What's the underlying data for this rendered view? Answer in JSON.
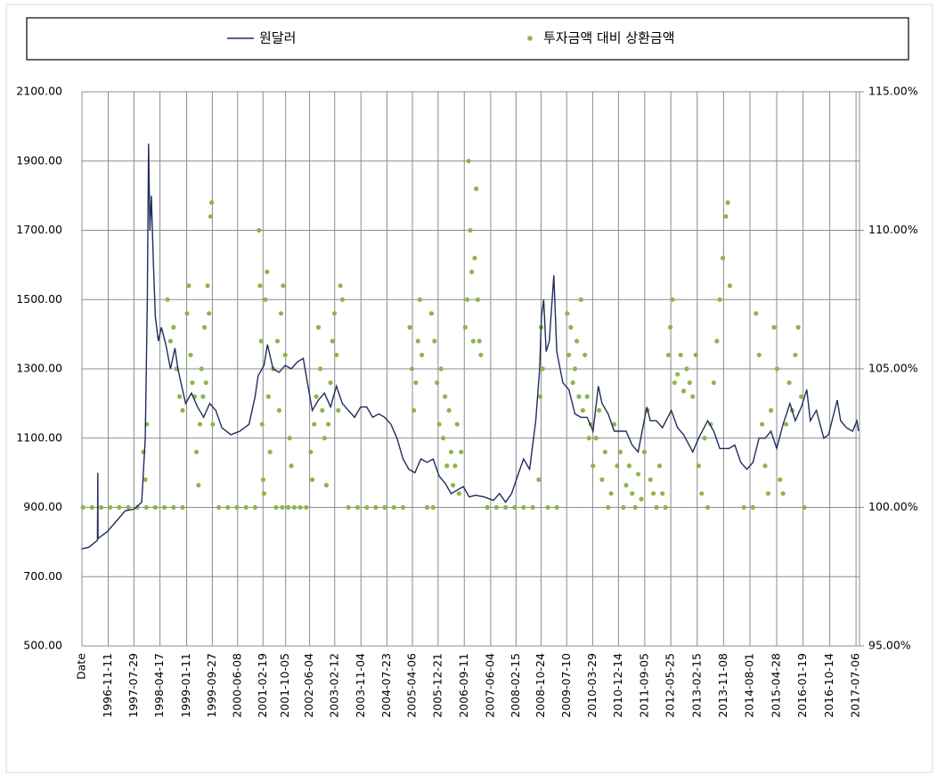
{
  "chart_data": {
    "type": "combo",
    "legend": "top",
    "grid": true,
    "xlim": [
      "1996-02-20",
      "2017-08-10"
    ],
    "xticks": [
      {
        "value": "1996-02-20",
        "label": "Date"
      },
      "1996-11-11",
      "1997-07-29",
      "1998-04-17",
      "1999-01-11",
      "1999-09-27",
      "2000-06-08",
      "2001-02-19",
      "2001-10-05",
      "2002-06-04",
      "2003-02-12",
      "2003-11-04",
      "2004-07-23",
      "2005-04-06",
      "2005-12-21",
      "2006-09-11",
      "2007-06-04",
      "2008-02-15",
      "2008-10-24",
      "2009-07-10",
      "2010-03-29",
      "2010-12-14",
      "2011-09-05",
      "2012-05-25",
      "2013-02-15",
      "2013-11-08",
      "2014-08-01",
      "2015-04-28",
      "2016-01-19",
      "2016-10-14",
      "2017-07-06"
    ],
    "ylim": [
      500,
      2100
    ],
    "yticks": [
      {
        "value": 500,
        "label": "500.00"
      },
      {
        "value": 700,
        "label": "700.00"
      },
      {
        "value": 900,
        "label": "900.00"
      },
      {
        "value": 1100,
        "label": "1100.00"
      },
      {
        "value": 1300,
        "label": "1300.00"
      },
      {
        "value": 1500,
        "label": "1500.00"
      },
      {
        "value": 1700,
        "label": "1700.00"
      },
      {
        "value": 1900,
        "label": "1900.00"
      },
      {
        "value": 2100,
        "label": "2100.00"
      }
    ],
    "y2lim": [
      95,
      115
    ],
    "y2ticks": [
      {
        "value": 95,
        "label": "95.00%"
      },
      {
        "value": 100,
        "label": "100.00%"
      },
      {
        "value": 105,
        "label": "105.00%"
      },
      {
        "value": 110,
        "label": "110.00%"
      },
      {
        "value": 115,
        "label": "115.00%"
      }
    ],
    "series": [
      {
        "name": "원달러",
        "type": "line",
        "color": "#1f2d5c",
        "x": [
          "1996-02-20",
          "1996-05-01",
          "1996-07-25",
          "1996-07-29",
          "1996-08-01",
          "1996-11-01",
          "1997-02-01",
          "1997-05-01",
          "1997-08-01",
          "1997-10-15",
          "1997-11-20",
          "1997-12-10",
          "1997-12-23",
          "1998-01-05",
          "1998-01-20",
          "1998-02-10",
          "1998-03-01",
          "1998-04-01",
          "1998-05-01",
          "1998-06-15",
          "1998-08-01",
          "1998-09-15",
          "1998-10-15",
          "1998-11-15",
          "1999-01-01",
          "1999-03-01",
          "1999-05-01",
          "1999-07-01",
          "1999-09-01",
          "1999-11-01",
          "2000-01-01",
          "2000-04-01",
          "2000-07-01",
          "2000-10-01",
          "2000-12-01",
          "2001-01-01",
          "2001-03-01",
          "2001-04-05",
          "2001-06-01",
          "2001-08-01",
          "2001-10-01",
          "2001-12-01",
          "2002-02-01",
          "2002-04-01",
          "2002-05-01",
          "2002-07-01",
          "2002-09-01",
          "2002-11-01",
          "2003-01-01",
          "2003-03-01",
          "2003-05-01",
          "2003-07-01",
          "2003-09-01",
          "2003-11-01",
          "2004-01-01",
          "2004-03-01",
          "2004-05-01",
          "2004-07-01",
          "2004-09-01",
          "2004-11-01",
          "2005-01-01",
          "2005-03-01",
          "2005-05-01",
          "2005-07-01",
          "2005-09-01",
          "2005-11-01",
          "2006-01-01",
          "2006-03-01",
          "2006-05-01",
          "2006-07-01",
          "2006-09-01",
          "2006-11-01",
          "2007-01-01",
          "2007-04-01",
          "2007-07-01",
          "2007-09-01",
          "2007-11-01",
          "2008-01-01",
          "2008-03-01",
          "2008-05-01",
          "2008-07-01",
          "2008-09-01",
          "2008-10-10",
          "2008-10-28",
          "2008-11-20",
          "2008-12-15",
          "2009-01-15",
          "2009-03-02",
          "2009-04-01",
          "2009-06-01",
          "2009-08-01",
          "2009-10-01",
          "2009-12-01",
          "2010-02-01",
          "2010-04-01",
          "2010-05-25",
          "2010-07-01",
          "2010-09-01",
          "2010-11-01",
          "2011-01-01",
          "2011-03-01",
          "2011-05-01",
          "2011-07-01",
          "2011-09-26",
          "2011-11-01",
          "2012-01-01",
          "2012-03-01",
          "2012-05-30",
          "2012-08-01",
          "2012-10-01",
          "2013-01-01",
          "2013-03-01",
          "2013-06-01",
          "2013-08-01",
          "2013-10-01",
          "2014-01-01",
          "2014-03-01",
          "2014-05-01",
          "2014-07-01",
          "2014-09-01",
          "2014-11-01",
          "2015-01-01",
          "2015-03-01",
          "2015-04-28",
          "2015-07-01",
          "2015-09-08",
          "2015-11-01",
          "2016-01-01",
          "2016-02-25",
          "2016-04-01",
          "2016-06-01",
          "2016-08-15",
          "2016-10-01",
          "2016-12-28",
          "2017-02-01",
          "2017-04-01",
          "2017-06-01",
          "2017-07-15",
          "2017-08-01"
        ],
        "values": [
          780,
          785,
          805,
          1000,
          810,
          830,
          860,
          890,
          895,
          915,
          1100,
          1500,
          1950,
          1700,
          1800,
          1600,
          1450,
          1380,
          1420,
          1370,
          1300,
          1360,
          1300,
          1260,
          1200,
          1230,
          1190,
          1160,
          1200,
          1180,
          1130,
          1110,
          1120,
          1140,
          1220,
          1280,
          1310,
          1370,
          1300,
          1290,
          1310,
          1300,
          1320,
          1330,
          1280,
          1180,
          1210,
          1230,
          1190,
          1250,
          1200,
          1180,
          1160,
          1190,
          1190,
          1160,
          1170,
          1160,
          1140,
          1100,
          1040,
          1010,
          1000,
          1040,
          1030,
          1040,
          990,
          970,
          940,
          950,
          960,
          930,
          935,
          930,
          920,
          940,
          915,
          940,
          990,
          1040,
          1010,
          1150,
          1300,
          1450,
          1500,
          1350,
          1380,
          1570,
          1350,
          1260,
          1240,
          1170,
          1160,
          1160,
          1120,
          1250,
          1200,
          1170,
          1120,
          1120,
          1120,
          1080,
          1060,
          1190,
          1150,
          1150,
          1130,
          1180,
          1130,
          1110,
          1060,
          1100,
          1150,
          1120,
          1070,
          1070,
          1080,
          1030,
          1010,
          1030,
          1100,
          1100,
          1120,
          1070,
          1140,
          1200,
          1150,
          1190,
          1240,
          1150,
          1180,
          1100,
          1110,
          1210,
          1150,
          1130,
          1120,
          1150,
          1120
        ]
      },
      {
        "name": "투자금액 대비 상환금액",
        "type": "scatter",
        "color": "#8db64a",
        "axis": "y2",
        "x": [
          "1996-03-01",
          "1996-06-01",
          "1996-09-01",
          "1996-12-01",
          "1997-03-01",
          "1997-06-01",
          "1997-09-01",
          "1997-12-01",
          "1998-03-01",
          "1998-06-01",
          "1998-09-01",
          "1998-12-01",
          "1999-12-01",
          "2000-03-01",
          "2000-06-01",
          "2000-09-01",
          "2000-12-01",
          "2001-07-01",
          "2001-09-01",
          "2001-11-01",
          "2002-01-01",
          "2002-03-01",
          "2002-05-01",
          "2003-07-01",
          "2003-10-01",
          "2004-01-01",
          "2004-04-01",
          "2004-07-01",
          "2004-10-01",
          "2005-01-01",
          "2005-09-01",
          "2005-11-01",
          "2007-05-01",
          "2007-08-01",
          "2007-11-01",
          "2008-02-01",
          "2008-05-01",
          "2008-08-01",
          "2009-01-01",
          "2009-04-01",
          "2010-09-01",
          "2011-02-01",
          "2011-06-01",
          "2012-01-01",
          "2012-04-01",
          "2013-06-01",
          "2014-06-01",
          "2014-09-01",
          "2016-02-01",
          "1997-11-01",
          "1997-11-20",
          "1997-12-05",
          "1998-07-01",
          "1998-08-01",
          "1998-09-01",
          "1998-10-01",
          "1998-11-01",
          "1998-12-01",
          "1999-01-15",
          "1999-02-01",
          "1999-02-20",
          "1999-03-10",
          "1999-04-01",
          "1999-04-20",
          "1999-05-10",
          "1999-05-25",
          "1999-06-10",
          "1999-06-25",
          "1999-07-10",
          "1999-07-25",
          "1999-08-10",
          "1999-08-25",
          "1999-09-10",
          "1999-09-20",
          "1999-10-01",
          "2001-01-10",
          "2001-01-20",
          "2001-02-01",
          "2001-02-10",
          "2001-02-20",
          "2001-03-01",
          "2001-03-15",
          "2001-04-01",
          "2001-04-15",
          "2001-05-01",
          "2001-06-01",
          "2001-07-15",
          "2001-08-01",
          "2001-08-20",
          "2001-09-10",
          "2001-10-01",
          "2001-11-15",
          "2001-12-01",
          "2002-06-15",
          "2002-07-01",
          "2002-07-20",
          "2002-08-10",
          "2002-09-01",
          "2002-09-20",
          "2002-10-10",
          "2002-11-01",
          "2002-11-20",
          "2002-12-10",
          "2003-01-01",
          "2003-01-20",
          "2003-02-10",
          "2003-03-01",
          "2003-03-20",
          "2003-04-10",
          "2003-05-01",
          "2005-03-10",
          "2005-04-01",
          "2005-04-20",
          "2005-05-10",
          "2005-06-01",
          "2005-06-20",
          "2005-07-10",
          "2005-10-15",
          "2005-11-15",
          "2005-12-10",
          "2006-01-01",
          "2006-01-20",
          "2006-02-10",
          "2006-03-01",
          "2006-03-20",
          "2006-04-10",
          "2006-05-01",
          "2006-05-20",
          "2006-06-10",
          "2006-07-01",
          "2006-07-20",
          "2006-08-10",
          "2006-09-20",
          "2006-10-10",
          "2006-10-25",
          "2006-11-10",
          "2006-11-25",
          "2006-12-10",
          "2006-12-25",
          "2007-01-10",
          "2007-01-25",
          "2007-02-10",
          "2007-02-25",
          "2008-10-01",
          "2008-10-15",
          "2008-10-25",
          "2008-11-10",
          "2009-07-15",
          "2009-08-01",
          "2009-08-20",
          "2009-09-10",
          "2009-10-01",
          "2009-10-20",
          "2009-11-10",
          "2009-12-01",
          "2009-12-20",
          "2010-01-10",
          "2010-02-01",
          "2010-02-20",
          "2010-03-10",
          "2010-04-01",
          "2010-05-01",
          "2010-06-01",
          "2010-07-01",
          "2010-08-01",
          "2010-10-01",
          "2010-11-01",
          "2010-12-01",
          "2011-01-01",
          "2011-03-01",
          "2011-04-01",
          "2011-05-01",
          "2011-07-01",
          "2011-08-01",
          "2011-09-01",
          "2011-10-01",
          "2011-11-01",
          "2011-12-01",
          "2012-02-01",
          "2012-03-01",
          "2012-05-01",
          "2012-05-20",
          "2012-06-10",
          "2012-07-01",
          "2012-08-01",
          "2012-09-01",
          "2012-10-01",
          "2012-11-01",
          "2012-12-01",
          "2013-01-01",
          "2013-02-01",
          "2013-03-01",
          "2013-04-01",
          "2013-05-01",
          "2013-07-01",
          "2013-08-01",
          "2013-09-01",
          "2013-10-01",
          "2013-11-01",
          "2013-12-01",
          "2013-12-20",
          "2014-01-10",
          "2014-10-01",
          "2014-11-01",
          "2014-12-01",
          "2015-01-01",
          "2015-02-01",
          "2015-03-01",
          "2015-04-01",
          "2015-05-01",
          "2015-06-01",
          "2015-07-01",
          "2015-08-01",
          "2015-09-01",
          "2015-10-01",
          "2015-11-01",
          "2015-12-01",
          "2016-01-01"
        ],
        "values": [
          100,
          100,
          100,
          100,
          100,
          100,
          100,
          100,
          100,
          100,
          100,
          100,
          100,
          100,
          100,
          100,
          100,
          100,
          100,
          100,
          100,
          100,
          100,
          100,
          100,
          100,
          100,
          100,
          100,
          100,
          100,
          100,
          100,
          100,
          100,
          100,
          100,
          100,
          100,
          100,
          100,
          100,
          100,
          100,
          100,
          100,
          100,
          100,
          100,
          102,
          101,
          103,
          107.5,
          106,
          106.5,
          105,
          104,
          103.5,
          107,
          108,
          105.5,
          104.5,
          104,
          102,
          100.8,
          103,
          105,
          104,
          106.5,
          104.5,
          108,
          107,
          110.5,
          111,
          103,
          110,
          108,
          106,
          103,
          101,
          100.5,
          107.5,
          108.5,
          104,
          102,
          105,
          106,
          103.5,
          107,
          108,
          105.5,
          102.5,
          101.5,
          102,
          101,
          103,
          104,
          106.5,
          105,
          103.5,
          102.5,
          100.8,
          103,
          104.5,
          106,
          107,
          105.5,
          103.5,
          108,
          107.5,
          106.5,
          105,
          103.5,
          104.5,
          106,
          107.5,
          105.5,
          107,
          106,
          104.5,
          103,
          105,
          102.5,
          104,
          101.5,
          103.5,
          102,
          100.8,
          101.5,
          103,
          100.5,
          102,
          106.5,
          107.5,
          112.5,
          110,
          108.5,
          106,
          109,
          111.5,
          107.5,
          106,
          105.5,
          101,
          104,
          106.5,
          105,
          107,
          105.5,
          106.5,
          104.5,
          105,
          106,
          104,
          107.5,
          103.5,
          105.5,
          104,
          102.5,
          103,
          101.5,
          102.5,
          103.5,
          101,
          102,
          100.5,
          103,
          101.5,
          102,
          100.8,
          101.5,
          100.5,
          101.2,
          100.3,
          102,
          103.5,
          101,
          100.5,
          101.5,
          100.5,
          105.5,
          106.5,
          107.5,
          104.5,
          104.8,
          105.5,
          104.2,
          105,
          104.5,
          104,
          105.5,
          101.5,
          100.5,
          102.5,
          103,
          104.5,
          106,
          107.5,
          109,
          110.5,
          111,
          108,
          107,
          105.5,
          103,
          101.5,
          100.5,
          103.5,
          106.5,
          105,
          101,
          100.5,
          103,
          104.5,
          103.5,
          105.5,
          106.5,
          104
        ]
      }
    ]
  }
}
